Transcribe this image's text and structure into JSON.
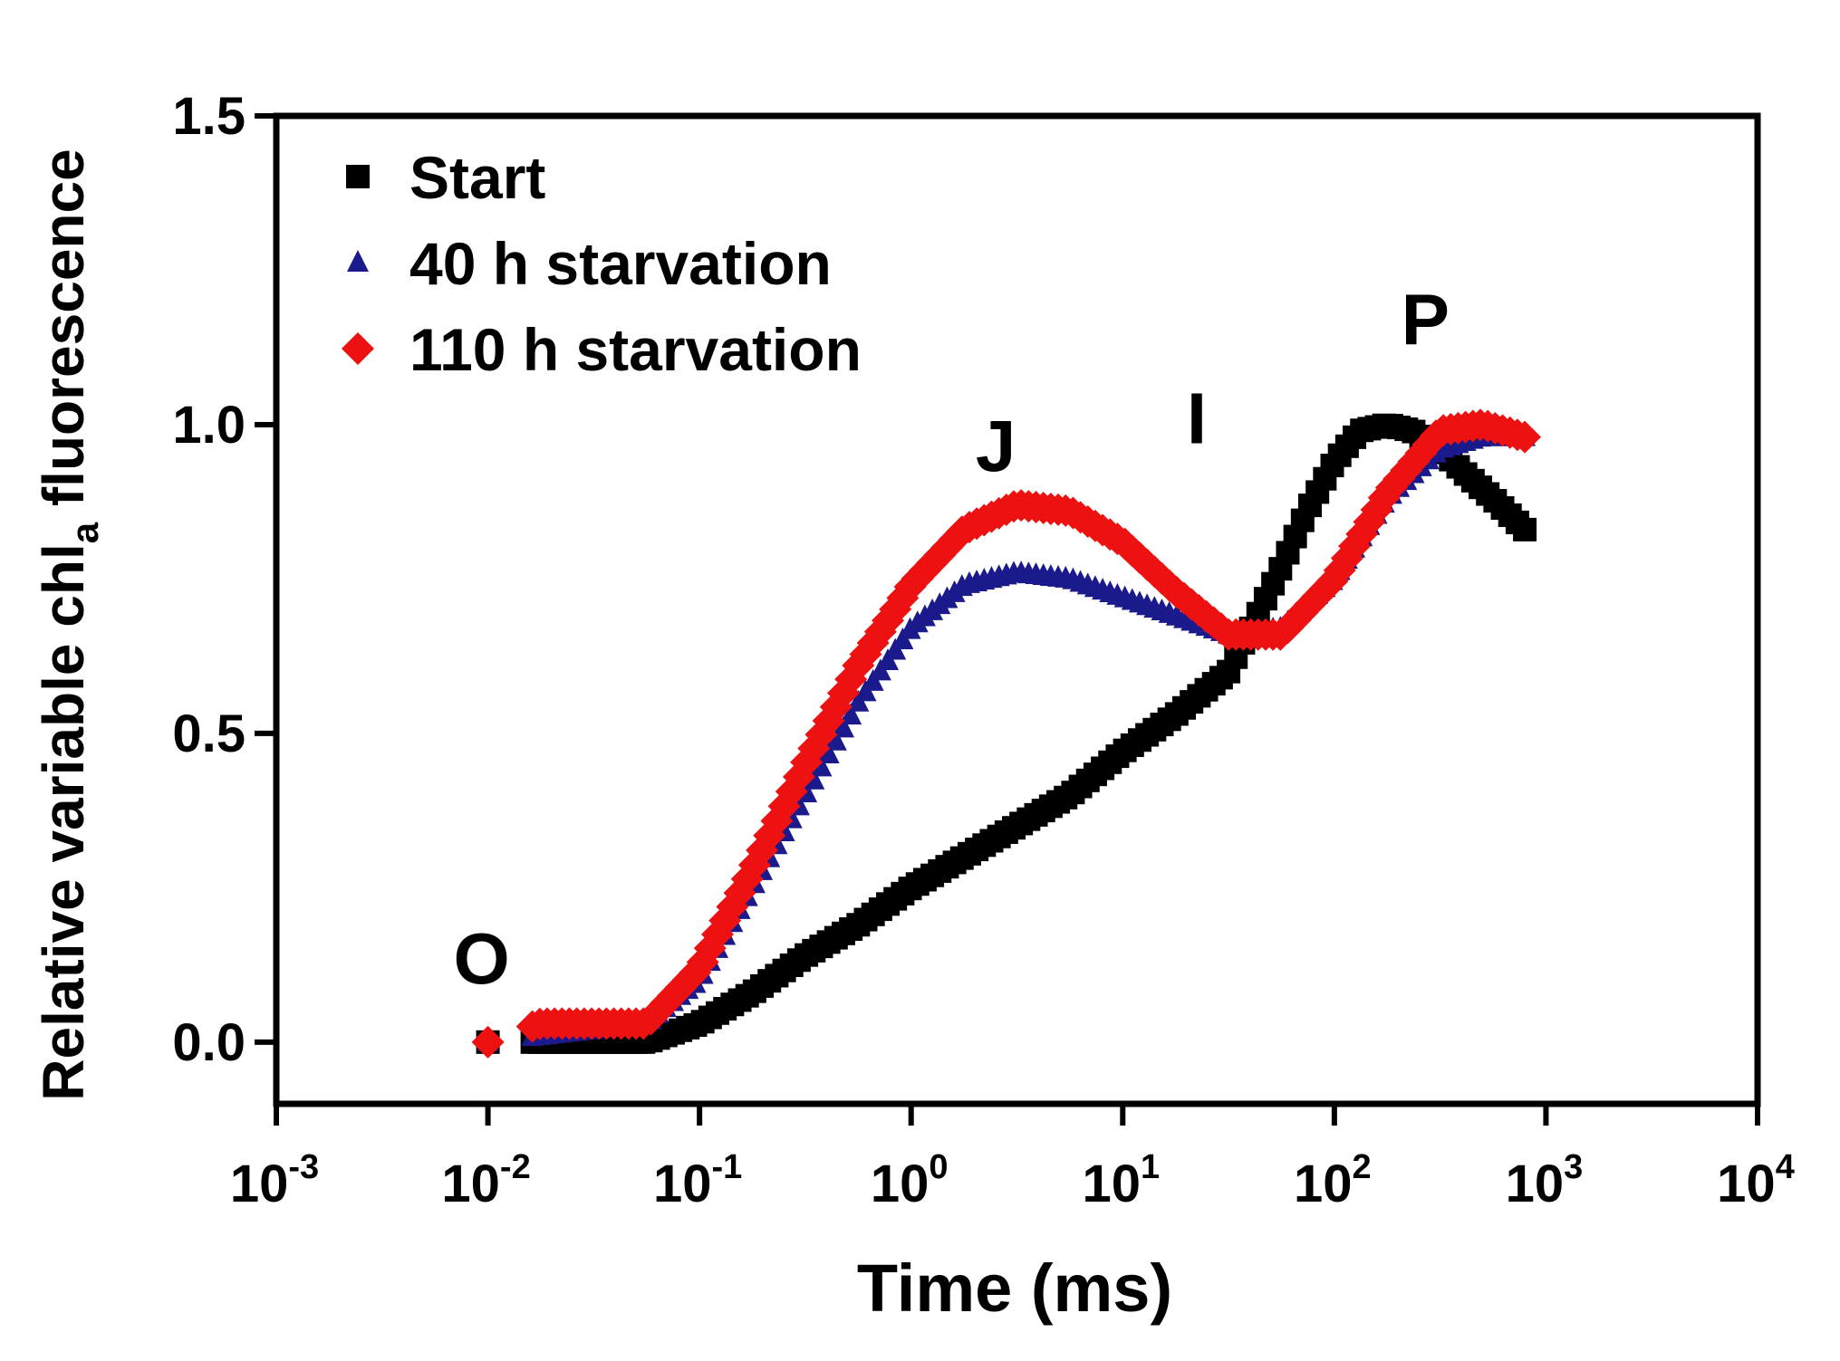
{
  "chart_data": {
    "type": "scatter",
    "title": "",
    "xlabel": "Time (ms)",
    "ylabel": {
      "main": "Relative variable chl",
      "sub": "a",
      "tail": " fluorescence"
    },
    "xscale": "log",
    "xlim_exp": [
      -3,
      4
    ],
    "ylim": [
      -0.1,
      1.5
    ],
    "x_ticks": [
      {
        "base": "10",
        "exp": "-3",
        "value_exp": -3
      },
      {
        "base": "10",
        "exp": "-2",
        "value_exp": -2
      },
      {
        "base": "10",
        "exp": "-1",
        "value_exp": -1
      },
      {
        "base": "10",
        "exp": "0",
        "value_exp": 0
      },
      {
        "base": "10",
        "exp": "1",
        "value_exp": 1
      },
      {
        "base": "10",
        "exp": "2",
        "value_exp": 2
      },
      {
        "base": "10",
        "exp": "3",
        "value_exp": 3
      },
      {
        "base": "10",
        "exp": "4",
        "value_exp": 4
      }
    ],
    "y_ticks": [
      {
        "label": "0.0",
        "value": 0.0
      },
      {
        "label": "0.5",
        "value": 0.5
      },
      {
        "label": "1.0",
        "value": 1.0
      },
      {
        "label": "1.5",
        "value": 1.5
      }
    ],
    "legend_position": "top-left",
    "annotations": [
      {
        "text": "O",
        "x_exp": -2.03,
        "y": 0.095
      },
      {
        "text": "J",
        "x_exp": 0.4,
        "y": 0.925
      },
      {
        "text": "I",
        "x_exp": 1.35,
        "y": 0.97
      },
      {
        "text": "P",
        "x_exp": 2.43,
        "y": 1.13
      }
    ],
    "series": [
      {
        "name": "Start",
        "marker": "square",
        "color": "#000000",
        "x_exp_range": [
          -2,
          2.9
        ],
        "points": [
          [
            -2.0,
            0.0
          ],
          [
            -1.5,
            0.0
          ],
          [
            -1.25,
            0.0
          ],
          [
            -1.0,
            0.03
          ],
          [
            -0.75,
            0.08
          ],
          [
            -0.5,
            0.14
          ],
          [
            -0.25,
            0.19
          ],
          [
            0.0,
            0.25
          ],
          [
            0.25,
            0.3
          ],
          [
            0.5,
            0.35
          ],
          [
            0.75,
            0.4
          ],
          [
            1.0,
            0.47
          ],
          [
            1.25,
            0.53
          ],
          [
            1.5,
            0.6
          ],
          [
            1.62,
            0.68
          ],
          [
            1.75,
            0.77
          ],
          [
            1.87,
            0.86
          ],
          [
            2.0,
            0.94
          ],
          [
            2.12,
            0.99
          ],
          [
            2.25,
            1.0
          ],
          [
            2.37,
            0.99
          ],
          [
            2.5,
            0.96
          ],
          [
            2.62,
            0.92
          ],
          [
            2.75,
            0.88
          ],
          [
            2.9,
            0.83
          ]
        ]
      },
      {
        "name": "40 h starvation",
        "marker": "triangle",
        "color": "#1a1a8c",
        "x_exp_range": [
          -2,
          2.9
        ],
        "points": [
          [
            -2.0,
            0.0
          ],
          [
            -1.5,
            0.02
          ],
          [
            -1.25,
            0.03
          ],
          [
            -1.0,
            0.1
          ],
          [
            -0.75,
            0.25
          ],
          [
            -0.5,
            0.4
          ],
          [
            -0.25,
            0.55
          ],
          [
            0.0,
            0.67
          ],
          [
            0.25,
            0.74
          ],
          [
            0.5,
            0.76
          ],
          [
            0.75,
            0.75
          ],
          [
            1.0,
            0.72
          ],
          [
            1.25,
            0.69
          ],
          [
            1.5,
            0.66
          ],
          [
            1.75,
            0.67
          ],
          [
            2.0,
            0.75
          ],
          [
            2.25,
            0.88
          ],
          [
            2.5,
            0.96
          ],
          [
            2.7,
            0.98
          ],
          [
            2.9,
            0.98
          ]
        ]
      },
      {
        "name": "110 h starvation",
        "marker": "diamond",
        "color": "#ee1111",
        "x_exp_range": [
          -2,
          2.9
        ],
        "points": [
          [
            -2.0,
            0.0
          ],
          [
            -1.75,
            0.03
          ],
          [
            -1.5,
            0.03
          ],
          [
            -1.25,
            0.03
          ],
          [
            -1.0,
            0.12
          ],
          [
            -0.75,
            0.28
          ],
          [
            -0.5,
            0.45
          ],
          [
            -0.25,
            0.61
          ],
          [
            0.0,
            0.74
          ],
          [
            0.25,
            0.83
          ],
          [
            0.5,
            0.87
          ],
          [
            0.75,
            0.86
          ],
          [
            1.0,
            0.81
          ],
          [
            1.25,
            0.73
          ],
          [
            1.5,
            0.66
          ],
          [
            1.75,
            0.66
          ],
          [
            2.0,
            0.75
          ],
          [
            2.25,
            0.89
          ],
          [
            2.5,
            0.99
          ],
          [
            2.7,
            1.0
          ],
          [
            2.9,
            0.98
          ]
        ]
      }
    ]
  }
}
